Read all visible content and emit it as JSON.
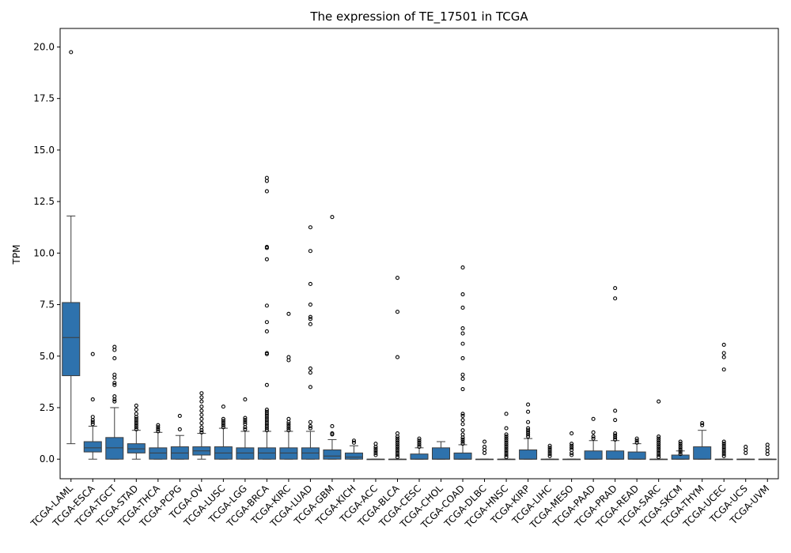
{
  "chart_data": {
    "type": "box",
    "title": "The expression of TE_17501 in TCGA",
    "xlabel": "",
    "ylabel": "TPM",
    "ylim": [
      -0.95,
      20.9
    ],
    "yticks": [
      0.0,
      2.5,
      5.0,
      7.5,
      10.0,
      12.5,
      15.0,
      17.5,
      20.0
    ],
    "ytick_labels": [
      "0.0",
      "2.5",
      "5.0",
      "7.5",
      "10.0",
      "12.5",
      "15.0",
      "17.5",
      "20.0"
    ],
    "grid": false,
    "box_color": "#2e72ad",
    "box_edge_color": "#3d3d3d",
    "categories": [
      "TCGA-LAML",
      "TCGA-ESCA",
      "TCGA-TGCT",
      "TCGA-STAD",
      "TCGA-THCA",
      "TCGA-PCPG",
      "TCGA-OV",
      "TCGA-LUSC",
      "TCGA-LGG",
      "TCGA-BRCA",
      "TCGA-KIRC",
      "TCGA-LUAD",
      "TCGA-GBM",
      "TCGA-KICH",
      "TCGA-ACC",
      "TCGA-BLCA",
      "TCGA-CESC",
      "TCGA-CHOL",
      "TCGA-COAD",
      "TCGA-DLBC",
      "TCGA-HNSC",
      "TCGA-KIRP",
      "TCGA-LIHC",
      "TCGA-MESO",
      "TCGA-PAAD",
      "TCGA-PRAD",
      "TCGA-READ",
      "TCGA-SARC",
      "TCGA-SKCM",
      "TCGA-THYM",
      "TCGA-UCEC",
      "TCGA-UCS",
      "TCGA-UVM"
    ],
    "boxes": [
      {
        "whislo": 0.75,
        "q1": 4.05,
        "med": 5.9,
        "q3": 7.6,
        "whishi": 11.8,
        "fliers": [
          19.75
        ]
      },
      {
        "whislo": 0.0,
        "q1": 0.35,
        "med": 0.55,
        "q3": 0.85,
        "whishi": 1.6,
        "fliers": [
          1.7,
          1.8,
          1.9,
          2.05,
          2.9,
          5.1
        ]
      },
      {
        "whislo": 0.0,
        "q1": 0.0,
        "med": 0.55,
        "q3": 1.05,
        "whishi": 2.5,
        "fliers": [
          2.8,
          2.9,
          3.05,
          3.6,
          3.7,
          3.95,
          4.1,
          4.9,
          5.3,
          5.45
        ]
      },
      {
        "whislo": 0.0,
        "q1": 0.3,
        "med": 0.5,
        "q3": 0.75,
        "whishi": 1.4,
        "fliers": [
          1.45,
          1.55,
          1.65,
          1.75,
          1.85,
          1.95,
          2.05,
          2.2,
          2.4,
          2.6
        ]
      },
      {
        "whislo": 0.0,
        "q1": 0.0,
        "med": 0.3,
        "q3": 0.55,
        "whishi": 1.3,
        "fliers": [
          1.35,
          1.45,
          1.55,
          1.65
        ]
      },
      {
        "whislo": 0.0,
        "q1": 0.0,
        "med": 0.3,
        "q3": 0.6,
        "whishi": 1.15,
        "fliers": [
          1.45,
          2.1
        ]
      },
      {
        "whislo": 0.0,
        "q1": 0.2,
        "med": 0.4,
        "q3": 0.6,
        "whishi": 1.25,
        "fliers": [
          1.3,
          1.4,
          1.55,
          1.75,
          1.95,
          2.15,
          2.35,
          2.55,
          2.8,
          3.0,
          3.2
        ]
      },
      {
        "whislo": 0.0,
        "q1": 0.0,
        "med": 0.3,
        "q3": 0.6,
        "whishi": 1.5,
        "fliers": [
          1.55,
          1.65,
          1.75,
          1.85,
          1.95,
          2.55
        ]
      },
      {
        "whislo": 0.0,
        "q1": 0.0,
        "med": 0.3,
        "q3": 0.55,
        "whishi": 1.35,
        "fliers": [
          1.45,
          1.55,
          1.7,
          1.8,
          1.9,
          2.0,
          2.9
        ]
      },
      {
        "whislo": 0.0,
        "q1": 0.0,
        "med": 0.3,
        "q3": 0.55,
        "whishi": 1.35,
        "fliers": [
          1.4,
          1.5,
          1.6,
          1.7,
          1.8,
          1.9,
          2.0,
          2.1,
          2.2,
          2.3,
          2.4,
          3.6,
          5.1,
          5.15,
          6.2,
          6.65,
          7.45,
          9.7,
          10.25,
          10.3,
          13.0,
          13.5,
          13.65
        ]
      },
      {
        "whislo": 0.0,
        "q1": 0.0,
        "med": 0.3,
        "q3": 0.55,
        "whishi": 1.35,
        "fliers": [
          1.4,
          1.5,
          1.6,
          1.7,
          1.8,
          1.95,
          4.8,
          4.95,
          7.05
        ]
      },
      {
        "whislo": 0.0,
        "q1": 0.0,
        "med": 0.3,
        "q3": 0.55,
        "whishi": 1.35,
        "fliers": [
          1.5,
          1.6,
          1.8,
          3.5,
          4.2,
          4.4,
          6.55,
          6.8,
          6.9,
          7.5,
          8.5,
          10.1,
          11.25
        ]
      },
      {
        "whislo": 0.0,
        "q1": 0.0,
        "med": 0.15,
        "q3": 0.45,
        "whishi": 0.95,
        "fliers": [
          1.2,
          1.25,
          1.6,
          11.75
        ]
      },
      {
        "whislo": 0.0,
        "q1": 0.0,
        "med": 0.1,
        "q3": 0.3,
        "whishi": 0.65,
        "fliers": [
          0.8,
          0.9
        ]
      },
      {
        "whislo": 0.0,
        "q1": 0.0,
        "med": 0.0,
        "q3": 0.0,
        "whishi": 0.0,
        "fliers": [
          0.2,
          0.3,
          0.4,
          0.5,
          0.6,
          0.75
        ]
      },
      {
        "whislo": 0.0,
        "q1": 0.0,
        "med": 0.0,
        "q3": 0.0,
        "whishi": 0.0,
        "fliers": [
          0.1,
          0.2,
          0.3,
          0.4,
          0.5,
          0.6,
          0.7,
          0.8,
          0.9,
          1.0,
          1.1,
          1.25,
          4.95,
          7.15,
          8.8
        ]
      },
      {
        "whislo": 0.0,
        "q1": 0.0,
        "med": 0.0,
        "q3": 0.25,
        "whishi": 0.55,
        "fliers": [
          0.6,
          0.7,
          0.8,
          0.9,
          1.0
        ]
      },
      {
        "whislo": 0.0,
        "q1": 0.0,
        "med": 0.0,
        "q3": 0.55,
        "whishi": 0.85,
        "fliers": []
      },
      {
        "whislo": 0.0,
        "q1": 0.0,
        "med": 0.0,
        "q3": 0.3,
        "whishi": 0.7,
        "fliers": [
          0.75,
          0.85,
          0.95,
          1.05,
          1.2,
          1.4,
          1.7,
          1.9,
          2.1,
          2.2,
          3.4,
          3.9,
          4.1,
          4.9,
          5.6,
          6.1,
          6.35,
          7.35,
          8.0,
          9.3
        ]
      },
      {
        "whislo": 0.0,
        "q1": 0.0,
        "med": 0.0,
        "q3": 0.0,
        "whishi": 0.0,
        "fliers": [
          0.3,
          0.45,
          0.6,
          0.85
        ]
      },
      {
        "whislo": 0.0,
        "q1": 0.0,
        "med": 0.0,
        "q3": 0.0,
        "whishi": 0.0,
        "fliers": [
          0.1,
          0.2,
          0.3,
          0.4,
          0.5,
          0.6,
          0.7,
          0.8,
          0.9,
          1.0,
          1.1,
          1.2,
          1.5,
          2.2
        ]
      },
      {
        "whislo": 0.0,
        "q1": 0.0,
        "med": 0.0,
        "q3": 0.45,
        "whishi": 1.0,
        "fliers": [
          1.1,
          1.2,
          1.3,
          1.4,
          1.5,
          1.8,
          2.3,
          2.65
        ]
      },
      {
        "whislo": 0.0,
        "q1": 0.0,
        "med": 0.0,
        "q3": 0.0,
        "whishi": 0.0,
        "fliers": [
          0.15,
          0.25,
          0.35,
          0.45,
          0.55,
          0.65
        ]
      },
      {
        "whislo": 0.0,
        "q1": 0.0,
        "med": 0.0,
        "q3": 0.0,
        "whishi": 0.0,
        "fliers": [
          0.2,
          0.3,
          0.45,
          0.55,
          0.65,
          0.75,
          1.25
        ]
      },
      {
        "whislo": 0.0,
        "q1": 0.0,
        "med": 0.0,
        "q3": 0.4,
        "whishi": 0.9,
        "fliers": [
          1.0,
          1.1,
          1.3,
          1.95
        ]
      },
      {
        "whislo": 0.0,
        "q1": 0.0,
        "med": 0.0,
        "q3": 0.4,
        "whishi": 0.9,
        "fliers": [
          0.95,
          1.05,
          1.15,
          1.25,
          1.9,
          2.35,
          7.8,
          8.3
        ]
      },
      {
        "whislo": 0.0,
        "q1": 0.0,
        "med": 0.0,
        "q3": 0.35,
        "whishi": 0.75,
        "fliers": [
          0.8,
          0.9,
          1.0
        ]
      },
      {
        "whislo": 0.0,
        "q1": 0.0,
        "med": 0.0,
        "q3": 0.0,
        "whishi": 0.0,
        "fliers": [
          0.1,
          0.2,
          0.3,
          0.4,
          0.5,
          0.6,
          0.7,
          0.8,
          0.9,
          1.0,
          1.1,
          2.8
        ]
      },
      {
        "whislo": 0.0,
        "q1": 0.0,
        "med": 0.0,
        "q3": 0.2,
        "whishi": 0.4,
        "fliers": [
          0.25,
          0.35,
          0.45,
          0.55,
          0.65,
          0.75,
          0.85
        ]
      },
      {
        "whislo": 0.0,
        "q1": 0.0,
        "med": 0.0,
        "q3": 0.6,
        "whishi": 1.4,
        "fliers": [
          1.65,
          1.75
        ]
      },
      {
        "whislo": 0.0,
        "q1": 0.0,
        "med": 0.0,
        "q3": 0.0,
        "whishi": 0.0,
        "fliers": [
          0.15,
          0.25,
          0.35,
          0.45,
          0.55,
          0.65,
          0.75,
          0.85,
          4.35,
          4.95,
          5.15,
          5.55
        ]
      },
      {
        "whislo": 0.0,
        "q1": 0.0,
        "med": 0.0,
        "q3": 0.0,
        "whishi": 0.0,
        "fliers": [
          0.3,
          0.45,
          0.6
        ]
      },
      {
        "whislo": 0.0,
        "q1": 0.0,
        "med": 0.0,
        "q3": 0.0,
        "whishi": 0.0,
        "fliers": [
          0.25,
          0.4,
          0.55,
          0.7
        ]
      }
    ]
  }
}
